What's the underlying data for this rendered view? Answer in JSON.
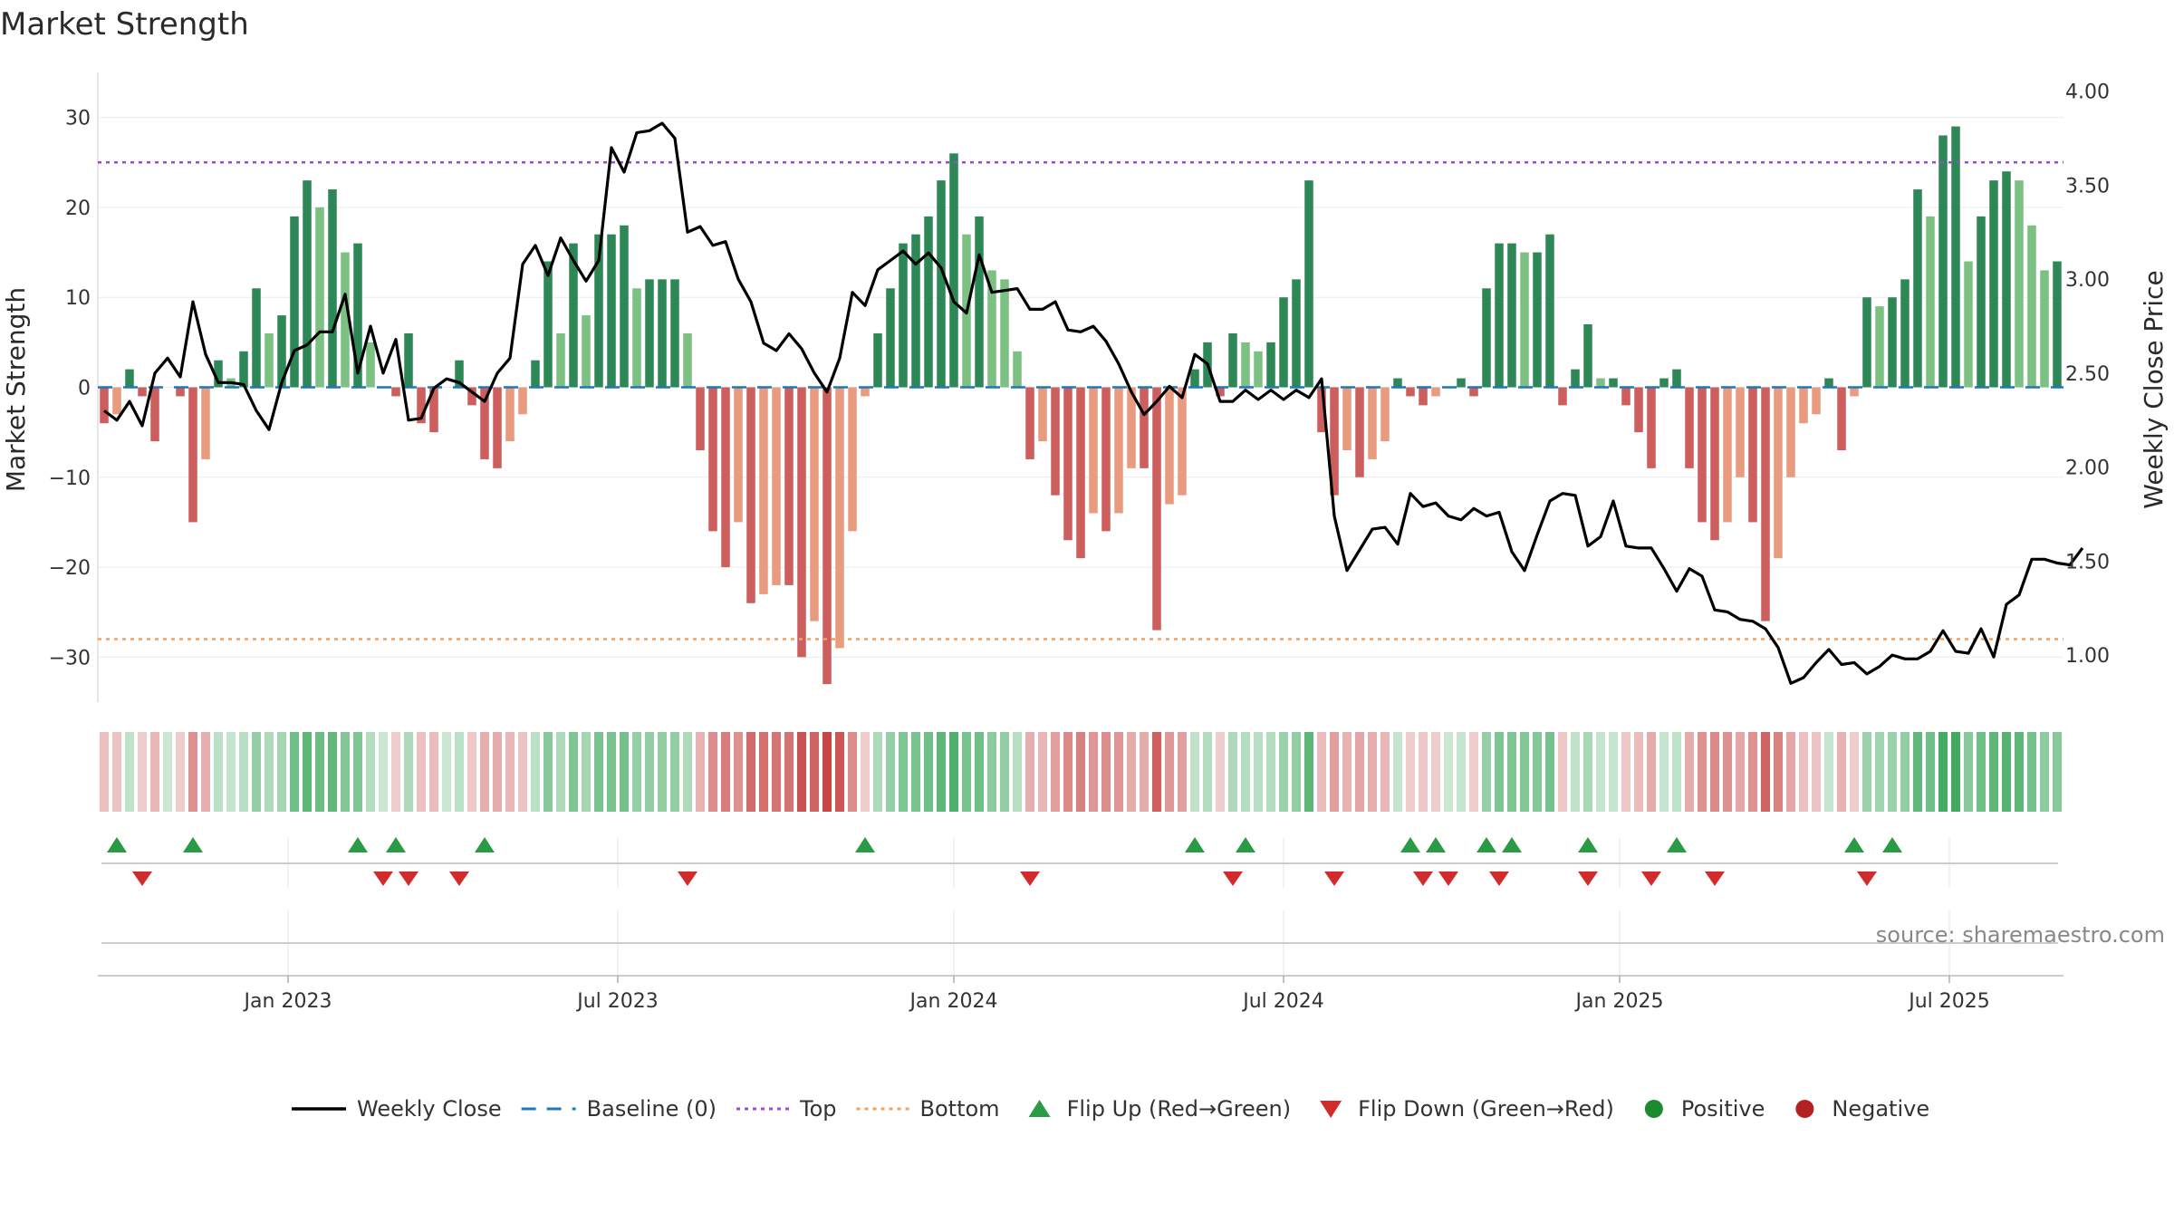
{
  "chart_data": {
    "type": "bar",
    "title": "Market Strength",
    "ylabel": "Market Strength",
    "y2label": "Weekly Close Price",
    "ylim": [
      -35,
      35
    ],
    "y2lim": [
      0.75,
      4.1
    ],
    "yticks": [
      30,
      20,
      10,
      0,
      -10,
      -20,
      -30
    ],
    "ytick_labels": [
      "30",
      "20",
      "10",
      "0",
      "−10",
      "−20",
      "−30"
    ],
    "y2ticks": [
      4.0,
      3.5,
      3.0,
      2.5,
      2.0,
      1.5,
      1.0
    ],
    "y2tick_labels": [
      "4.00",
      "3.50",
      "3.00",
      "2.50",
      "2.00",
      "1.50",
      "1.00"
    ],
    "top_level": 25,
    "bottom_level": -28,
    "baseline": 0,
    "start_week": "2022-09-19",
    "xticks": [
      {
        "label": "Jan 2023",
        "week": 15
      },
      {
        "label": "Jul 2023",
        "week": 41
      },
      {
        "label": "Jan 2024",
        "week": 67.5
      },
      {
        "label": "Jul 2024",
        "week": 93.5
      },
      {
        "label": "Jan 2025",
        "week": 120
      },
      {
        "label": "Jul 2025",
        "week": 146
      }
    ],
    "strength": [
      -4,
      -3,
      2,
      -1,
      -6,
      0,
      -1,
      -15,
      -8,
      3,
      1,
      4,
      11,
      6,
      8,
      19,
      23,
      20,
      22,
      15,
      16,
      5,
      0,
      -1,
      6,
      -4,
      -5,
      0,
      3,
      -2,
      -8,
      -9,
      -6,
      -3,
      3,
      14,
      6,
      16,
      8,
      17,
      17,
      18,
      11,
      12,
      12,
      12,
      6,
      -7,
      -16,
      -20,
      -15,
      -24,
      -23,
      -22,
      -22,
      -30,
      -26,
      -33,
      -29,
      -16,
      -1,
      6,
      11,
      16,
      17,
      19,
      23,
      26,
      17,
      19,
      13,
      12,
      4,
      -8,
      -6,
      -12,
      -17,
      -19,
      -14,
      -16,
      -14,
      -9,
      -9,
      -27,
      -13,
      -12,
      2,
      5,
      -1,
      6,
      5,
      4,
      5,
      10,
      12,
      23,
      -5,
      -12,
      -7,
      -10,
      -8,
      -6,
      1,
      -1,
      -2,
      -1,
      0,
      1,
      -1,
      11,
      16,
      16,
      15,
      15,
      17,
      -2,
      2,
      7,
      1,
      1,
      -2,
      -5,
      -9,
      1,
      2,
      -9,
      -15,
      -17,
      -15,
      -10,
      -15,
      -26,
      -19,
      -10,
      -4,
      -3,
      1,
      -7,
      -1,
      10,
      9,
      10,
      12,
      22,
      19,
      28,
      29,
      14,
      19,
      23,
      24,
      23,
      18,
      13,
      14
    ],
    "weekly_close": [
      2.3,
      2.25,
      2.35,
      2.22,
      2.5,
      2.58,
      2.48,
      2.88,
      2.6,
      2.45,
      2.45,
      2.44,
      2.3,
      2.2,
      2.45,
      2.62,
      2.65,
      2.72,
      2.72,
      2.92,
      2.5,
      2.75,
      2.5,
      2.68,
      2.25,
      2.26,
      2.42,
      2.47,
      2.45,
      2.4,
      2.35,
      2.5,
      2.58,
      3.08,
      3.18,
      3.02,
      3.22,
      3.1,
      2.99,
      3.1,
      3.7,
      3.57,
      3.78,
      3.79,
      3.83,
      3.75,
      3.25,
      3.28,
      3.18,
      3.2,
      3.0,
      2.88,
      2.66,
      2.62,
      2.71,
      2.63,
      2.5,
      2.4,
      2.58,
      2.93,
      2.86,
      3.05,
      3.1,
      3.15,
      3.08,
      3.14,
      3.06,
      2.88,
      2.82,
      3.13,
      2.93,
      2.94,
      2.95,
      2.84,
      2.84,
      2.88,
      2.73,
      2.72,
      2.75,
      2.67,
      2.55,
      2.4,
      2.28,
      2.35,
      2.43,
      2.37,
      2.6,
      2.55,
      2.35,
      2.35,
      2.41,
      2.36,
      2.41,
      2.36,
      2.41,
      2.37,
      2.47,
      1.74,
      1.45,
      1.56,
      1.67,
      1.68,
      1.59,
      1.86,
      1.79,
      1.81,
      1.74,
      1.72,
      1.78,
      1.74,
      1.76,
      1.55,
      1.45,
      1.64,
      1.82,
      1.86,
      1.85,
      1.58,
      1.63,
      1.82,
      1.58,
      1.57,
      1.57,
      1.46,
      1.34,
      1.46,
      1.42,
      1.24,
      1.23,
      1.19,
      1.18,
      1.14,
      1.04,
      0.85,
      0.88,
      0.96,
      1.03,
      0.95,
      0.96,
      0.9,
      0.94,
      1.0,
      0.98,
      0.98,
      1.02,
      1.13,
      1.02,
      1.01,
      1.14,
      0.99,
      1.27,
      1.32,
      1.51,
      1.51,
      1.49,
      1.48,
      1.57
    ],
    "flip_up_weeks": [
      1,
      7,
      20,
      23,
      30,
      60,
      86,
      90,
      103,
      105,
      109,
      111,
      117,
      124,
      138,
      141
    ],
    "flip_down_weeks": [
      3,
      22,
      24,
      28,
      46,
      73,
      89,
      97,
      104,
      106,
      110,
      117,
      122,
      127,
      139
    ],
    "source": "source: sharemaestro.com",
    "colors": {
      "positive_strong": "#2e8757",
      "positive_weak": "#7dc083",
      "negative_strong": "#cc5e5e",
      "negative_weak": "#e99b80",
      "flip_up": "#2a9a44",
      "flip_down": "#d22b2b",
      "top": "#9a4dc8",
      "bottom": "#f0a060",
      "baseline": "#1f77b4",
      "close": "#000000"
    },
    "legend": [
      {
        "label": "Weekly Close",
        "kind": "line",
        "color": "#000000"
      },
      {
        "label": "Baseline (0)",
        "kind": "dash",
        "color": "#1f77b4"
      },
      {
        "label": "Top",
        "kind": "dot",
        "color": "#9a4dc8"
      },
      {
        "label": "Bottom",
        "kind": "dot",
        "color": "#f0a060"
      },
      {
        "label": "Flip Up (Red→Green)",
        "kind": "tri-up",
        "color": "#2a9a44"
      },
      {
        "label": "Flip Down (Green→Red)",
        "kind": "tri-down",
        "color": "#d22b2b"
      },
      {
        "label": "Positive",
        "kind": "circle",
        "color": "#1e8a2e"
      },
      {
        "label": "Negative",
        "kind": "circle",
        "color": "#b22222"
      }
    ]
  }
}
